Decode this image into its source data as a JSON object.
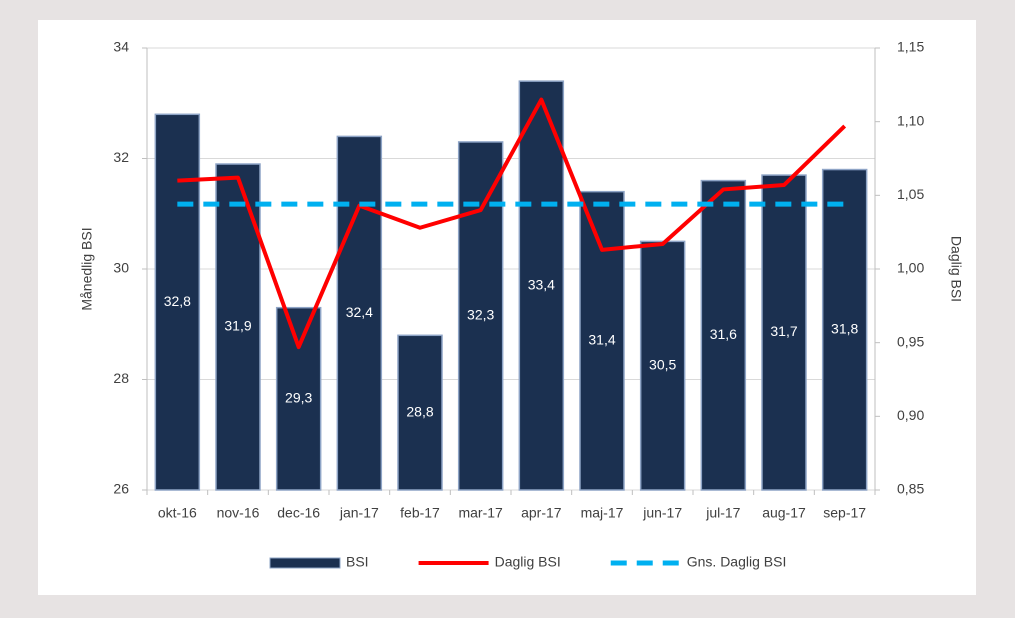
{
  "chart_data": {
    "type": "bar",
    "categories": [
      "okt-16",
      "nov-16",
      "dec-16",
      "jan-17",
      "feb-17",
      "mar-17",
      "apr-17",
      "maj-17",
      "jun-17",
      "jul-17",
      "aug-17",
      "sep-17"
    ],
    "series": [
      {
        "name": "BSI",
        "type": "bar",
        "color": "#1b3050",
        "values": [
          32.8,
          31.9,
          29.3,
          32.4,
          28.8,
          32.3,
          33.4,
          31.4,
          30.5,
          31.6,
          31.7,
          31.8
        ],
        "value_labels": [
          "32,8",
          "31,9",
          "29,3",
          "32,4",
          "28,8",
          "32,3",
          "33,4",
          "31,4",
          "30,5",
          "31,6",
          "31,7",
          "31,8"
        ]
      },
      {
        "name": "Daglig BSI",
        "type": "line",
        "axis": "y2",
        "color": "#ff0000",
        "values": [
          1.06,
          1.062,
          0.947,
          1.043,
          1.028,
          1.04,
          1.115,
          1.013,
          1.017,
          1.054,
          1.057,
          1.097
        ]
      },
      {
        "name": "Gns. Daglig BSI",
        "type": "line",
        "axis": "y2",
        "color": "#00b0f0",
        "dashed": true,
        "values": [
          1.044,
          1.044,
          1.044,
          1.044,
          1.044,
          1.044,
          1.044,
          1.044,
          1.044,
          1.044,
          1.044,
          1.044
        ]
      }
    ],
    "ylabel": "Månedlig BSI",
    "y2label": "Daglig BSI",
    "ylim": [
      26,
      34
    ],
    "yticks": [
      26,
      28,
      30,
      32,
      34
    ],
    "y2lim": [
      0.85,
      1.15
    ],
    "y2ticks": [
      {
        "value": 0.85,
        "label": "0,85"
      },
      {
        "value": 0.9,
        "label": "0,90"
      },
      {
        "value": 0.95,
        "label": "0,95"
      },
      {
        "value": 1.0,
        "label": "1,00"
      },
      {
        "value": 1.05,
        "label": "1,05"
      },
      {
        "value": 1.1,
        "label": "1,10"
      },
      {
        "value": 1.15,
        "label": "1,15"
      }
    ],
    "grid": true,
    "legend": "bottom"
  }
}
